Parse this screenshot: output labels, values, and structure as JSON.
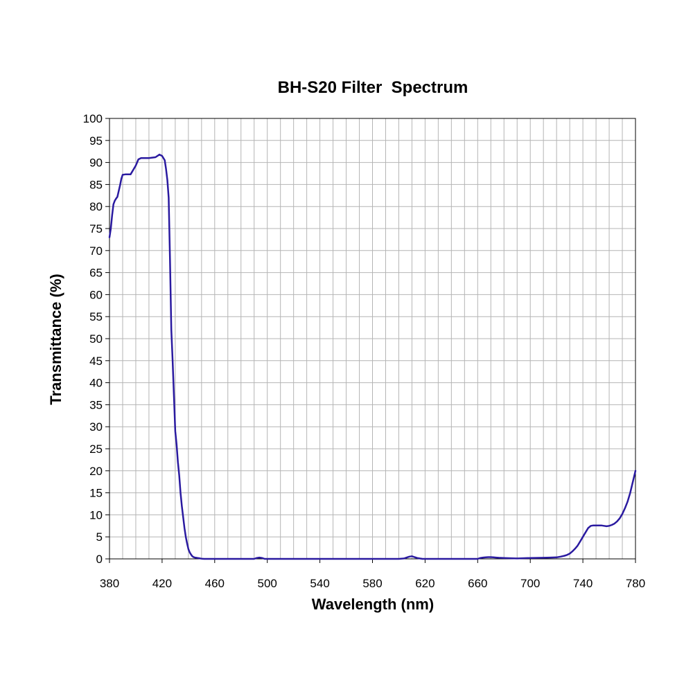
{
  "chart_data": {
    "type": "line",
    "title": "BH-S20 Filter  Spectrum",
    "xlabel": "Wavelength (nm)",
    "ylabel": "Transmittance (%)",
    "xlim": [
      380,
      780
    ],
    "ylim": [
      0,
      100
    ],
    "x_ticks": [
      380,
      420,
      460,
      500,
      540,
      580,
      620,
      660,
      700,
      740,
      780
    ],
    "y_ticks": [
      0,
      5,
      10,
      15,
      20,
      25,
      30,
      35,
      40,
      45,
      50,
      55,
      60,
      65,
      70,
      75,
      80,
      85,
      90,
      95,
      100
    ],
    "x_minor_step": 10,
    "grid": true,
    "line_color": "#2a1aa0",
    "series": [
      {
        "x": [
          380,
          381,
          382,
          383,
          384,
          385,
          386,
          387,
          388,
          389,
          390,
          392,
          394,
          396,
          398,
          400,
          402,
          404,
          406,
          408,
          410,
          415,
          418,
          420,
          422,
          423,
          424,
          425,
          426,
          427,
          428,
          429,
          430,
          431,
          432,
          433,
          434,
          435,
          436,
          437,
          438,
          439,
          440,
          441,
          442,
          443,
          444,
          445,
          446,
          447,
          448,
          449,
          450,
          452,
          454,
          456,
          458,
          460,
          470,
          480,
          490,
          492,
          494,
          496,
          498,
          500,
          520,
          540,
          560,
          580,
          600,
          604,
          606,
          608,
          610,
          612,
          614,
          616,
          618,
          620,
          640,
          650,
          660,
          662,
          664,
          666,
          668,
          670,
          672,
          674,
          676,
          680,
          690,
          700,
          710,
          715,
          720,
          723,
          726,
          728,
          730,
          732,
          734,
          736,
          738,
          740,
          742,
          744,
          746,
          748,
          750,
          752,
          754,
          756,
          758,
          760,
          762,
          764,
          766,
          768,
          770,
          772,
          774,
          776,
          778,
          780
        ],
        "y": [
          73,
          75,
          78,
          80.5,
          81.3,
          81.8,
          82.2,
          83.5,
          84.8,
          86.3,
          87.2,
          87.3,
          87.3,
          87.3,
          88.3,
          89.3,
          90.7,
          91.0,
          91.0,
          91.0,
          91.0,
          91.2,
          91.8,
          91.5,
          90.5,
          88.5,
          86.0,
          82.0,
          68.0,
          52.0,
          45.0,
          37.0,
          29.0,
          26.0,
          22.0,
          19.0,
          15.0,
          12.0,
          9.5,
          7.0,
          5.0,
          3.5,
          2.2,
          1.5,
          1.0,
          0.6,
          0.4,
          0.3,
          0.25,
          0.2,
          0.15,
          0.1,
          0.05,
          0.0,
          0.0,
          0.0,
          0.0,
          0.0,
          0.0,
          0.0,
          0.0,
          0.2,
          0.3,
          0.2,
          0.0,
          0.0,
          0.0,
          0.0,
          0.0,
          0.0,
          0.0,
          0.1,
          0.3,
          0.5,
          0.6,
          0.4,
          0.2,
          0.1,
          0.0,
          0.0,
          0.0,
          0.0,
          0.0,
          0.2,
          0.3,
          0.35,
          0.4,
          0.4,
          0.35,
          0.3,
          0.25,
          0.2,
          0.1,
          0.2,
          0.25,
          0.3,
          0.35,
          0.5,
          0.7,
          0.9,
          1.2,
          1.7,
          2.3,
          3.0,
          4.0,
          5.0,
          6.0,
          7.0,
          7.5,
          7.6,
          7.6,
          7.6,
          7.6,
          7.5,
          7.4,
          7.5,
          7.7,
          8.0,
          8.5,
          9.2,
          10.2,
          11.5,
          13.0,
          15.0,
          17.5,
          20.0
        ]
      }
    ]
  }
}
